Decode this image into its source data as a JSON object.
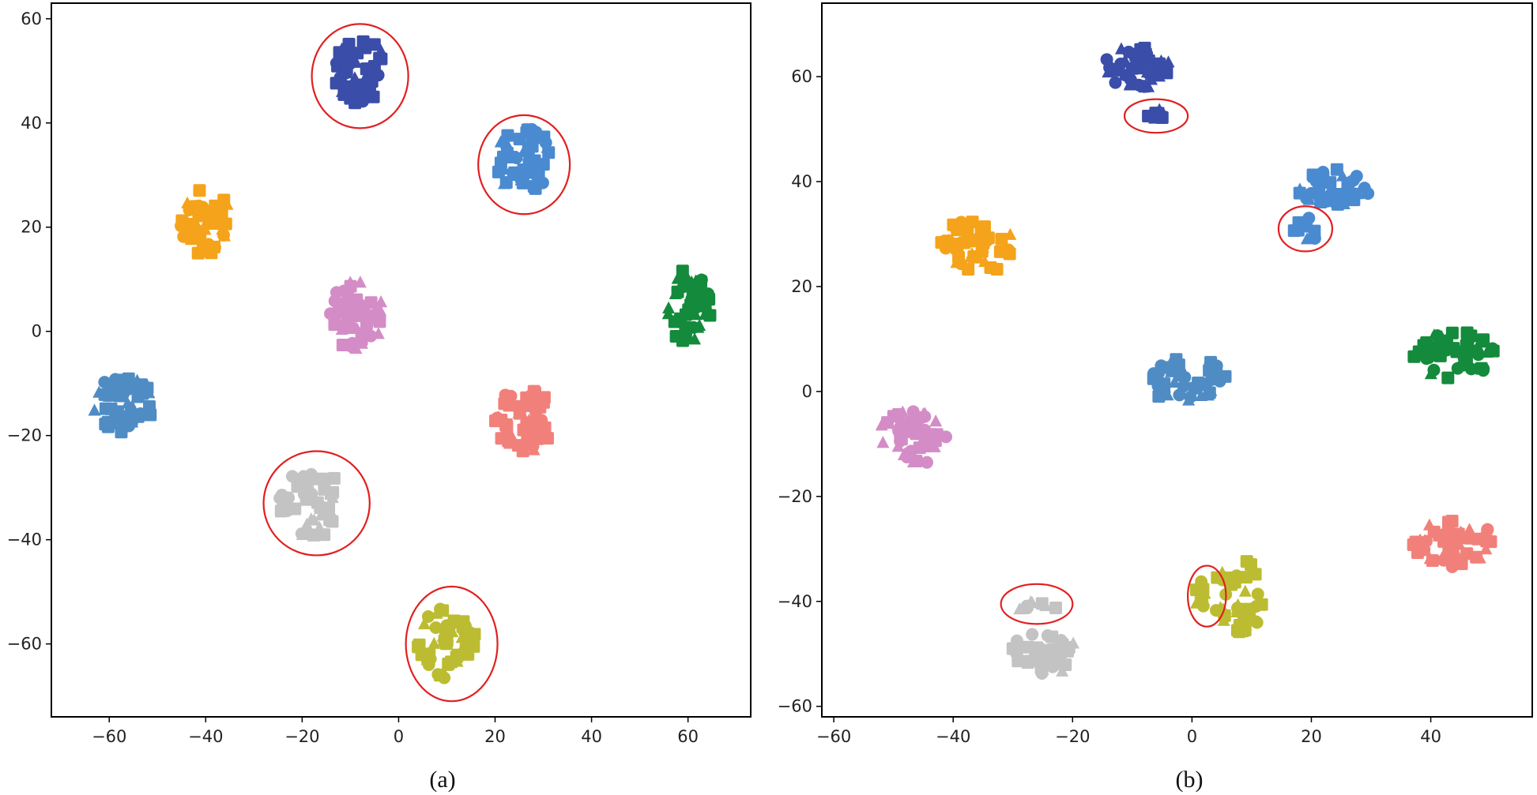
{
  "chart_data": [
    {
      "type": "scatter",
      "caption": "(a)",
      "xlim": [
        -72,
        73
      ],
      "ylim": [
        -74,
        63
      ],
      "xticks": [
        -60,
        -40,
        -20,
        0,
        20,
        40,
        60
      ],
      "yticks": [
        60,
        40,
        20,
        0,
        -20,
        -40,
        -60
      ],
      "xtick_labels": [
        "−60",
        "−40",
        "−20",
        "0",
        "20",
        "40",
        "60"
      ],
      "ytick_labels": [
        "60",
        "40",
        "20",
        "0",
        "−20",
        "−40",
        "−60"
      ],
      "clusters": [
        {
          "color": "#3a4da8",
          "cx": -8,
          "cy": 50,
          "rx": 5.5,
          "ry": 6.5,
          "n": 55,
          "seed": 11
        },
        {
          "color": "#4a8ad0",
          "cx": 26,
          "cy": 33,
          "rx": 6,
          "ry": 6.5,
          "n": 50,
          "seed": 12
        },
        {
          "color": "#f5a31a",
          "cx": -40,
          "cy": 21,
          "rx": 5.5,
          "ry": 6.5,
          "n": 45,
          "seed": 13
        },
        {
          "color": "#d48cc7",
          "cx": -9,
          "cy": 3,
          "rx": 6,
          "ry": 6.5,
          "n": 45,
          "seed": 14
        },
        {
          "color": "#148a3c",
          "cx": 60,
          "cy": 5,
          "rx": 5,
          "ry": 7,
          "n": 50,
          "seed": 15
        },
        {
          "color": "#4f8cc4",
          "cx": -57,
          "cy": -14,
          "rx": 6.5,
          "ry": 5.5,
          "n": 50,
          "seed": 16
        },
        {
          "color": "#f2807a",
          "cx": 26,
          "cy": -17,
          "rx": 6,
          "ry": 6.5,
          "n": 55,
          "seed": 17
        },
        {
          "color": "#c3c3c3",
          "cx": -18,
          "cy": -33,
          "rx": 7,
          "ry": 6.5,
          "n": 45,
          "seed": 18
        },
        {
          "color": "#bcbc32",
          "cx": 10,
          "cy": -60,
          "rx": 6,
          "ry": 7,
          "n": 50,
          "seed": 19
        }
      ],
      "highlight_ellipses": [
        {
          "cx": -8,
          "cy": 49,
          "rx": 10,
          "ry": 10
        },
        {
          "cx": 26,
          "cy": 32,
          "rx": 9.5,
          "ry": 9.5
        },
        {
          "cx": -17,
          "cy": -33,
          "rx": 11,
          "ry": 10
        },
        {
          "cx": 11,
          "cy": -60,
          "rx": 9.5,
          "ry": 11
        }
      ]
    },
    {
      "type": "scatter",
      "caption": "(b)",
      "xlim": [
        -62,
        57
      ],
      "ylim": [
        -62,
        74
      ],
      "xticks": [
        -60,
        -40,
        -20,
        0,
        20,
        40
      ],
      "yticks": [
        60,
        40,
        20,
        0,
        -20,
        -40,
        -60
      ],
      "xtick_labels": [
        "−60",
        "−40",
        "−20",
        "0",
        "20",
        "40"
      ],
      "ytick_labels": [
        "60",
        "40",
        "20",
        "0",
        "−20",
        "−40",
        "−60"
      ],
      "clusters": [
        {
          "color": "#3a4da8",
          "cx": -9,
          "cy": 62,
          "rx": 5.5,
          "ry": 4.5,
          "n": 45,
          "seed": 21
        },
        {
          "color": "#3a4da8",
          "cx": -6,
          "cy": 53,
          "rx": 3,
          "ry": 1,
          "n": 8,
          "seed": 22
        },
        {
          "color": "#4a8ad0",
          "cx": 24,
          "cy": 39,
          "rx": 6.5,
          "ry": 3.5,
          "n": 40,
          "seed": 23
        },
        {
          "color": "#4a8ad0",
          "cx": 19,
          "cy": 31,
          "rx": 2.5,
          "ry": 2.5,
          "n": 8,
          "seed": 24
        },
        {
          "color": "#f5a31a",
          "cx": -36,
          "cy": 28,
          "rx": 6,
          "ry": 6,
          "n": 45,
          "seed": 25
        },
        {
          "color": "#148a3c",
          "cx": 44,
          "cy": 7,
          "rx": 7,
          "ry": 4.5,
          "n": 50,
          "seed": 26
        },
        {
          "color": "#4f8cc4",
          "cx": -1,
          "cy": 2,
          "rx": 7,
          "ry": 4.5,
          "n": 45,
          "seed": 27
        },
        {
          "color": "#d48cc7",
          "cx": -47,
          "cy": -9,
          "rx": 6,
          "ry": 5.5,
          "n": 45,
          "seed": 28
        },
        {
          "color": "#f2807a",
          "cx": 44,
          "cy": -29,
          "rx": 7,
          "ry": 4.5,
          "n": 55,
          "seed": 29
        },
        {
          "color": "#bcbc32",
          "cx": 8,
          "cy": -39,
          "rx": 4.5,
          "ry": 7,
          "n": 40,
          "seed": 30
        },
        {
          "color": "#bcbc32",
          "cx": 2,
          "cy": -39,
          "rx": 1.5,
          "ry": 3.5,
          "n": 8,
          "seed": 31
        },
        {
          "color": "#c3c3c3",
          "cx": -25,
          "cy": -50,
          "rx": 6,
          "ry": 4,
          "n": 45,
          "seed": 32
        },
        {
          "color": "#c3c3c3",
          "cx": -26,
          "cy": -41,
          "rx": 4,
          "ry": 1,
          "n": 8,
          "seed": 33
        }
      ],
      "highlight_ellipses": [
        {
          "cx": -6,
          "cy": 52.5,
          "rx": 5.3,
          "ry": 3.2
        },
        {
          "cx": 19,
          "cy": 31,
          "rx": 4.5,
          "ry": 4.3
        },
        {
          "cx": 2.5,
          "cy": -39,
          "rx": 3.2,
          "ry": 5.8
        },
        {
          "cx": -26,
          "cy": -40.5,
          "rx": 6,
          "ry": 3.8
        }
      ]
    }
  ]
}
